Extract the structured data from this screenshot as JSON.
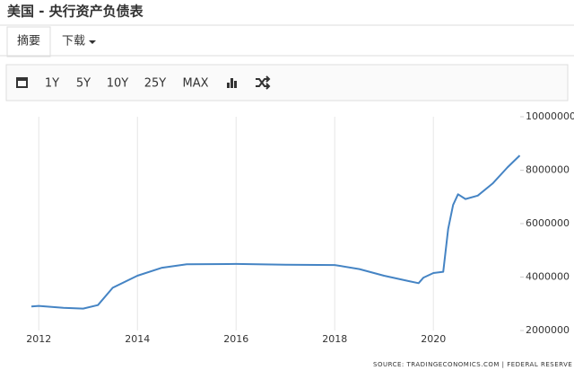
{
  "header": {
    "title": "美国 - 央行资产负债表"
  },
  "tabs": [
    "摘要",
    "下载"
  ],
  "toolbar": [
    "1Y",
    "5Y",
    "10Y",
    "25Y",
    "MAX"
  ],
  "source": "SOURCE: TRADINGECONOMICS.COM  |  FEDERAL RESERVE",
  "chart_data": {
    "type": "line",
    "color": "#4584c4",
    "x": [
      2011.85,
      2012.0,
      2012.5,
      2012.9,
      2013.2,
      2013.5,
      2014.0,
      2014.5,
      2015.0,
      2016.0,
      2017.0,
      2018.0,
      2018.5,
      2019.0,
      2019.5,
      2019.7,
      2019.8,
      2020.0,
      2020.2,
      2020.3,
      2020.4,
      2020.5,
      2020.65,
      2020.9,
      2021.2,
      2021.5,
      2021.75
    ],
    "values": [
      2900000,
      2920000,
      2850000,
      2820000,
      2950000,
      3600000,
      4050000,
      4350000,
      4480000,
      4490000,
      4460000,
      4450000,
      4300000,
      4050000,
      3850000,
      3770000,
      3980000,
      4150000,
      4200000,
      5800000,
      6700000,
      7100000,
      6920000,
      7050000,
      7500000,
      8100000,
      8550000
    ],
    "xlim": [
      2011.85,
      2021.76
    ],
    "xticks": [
      2012,
      2014,
      2016,
      2018,
      2020
    ],
    "ylim": [
      2000000,
      10000000
    ],
    "yticks": [
      2000000,
      4000000,
      6000000,
      8000000,
      10000000
    ],
    "grid": "x"
  }
}
